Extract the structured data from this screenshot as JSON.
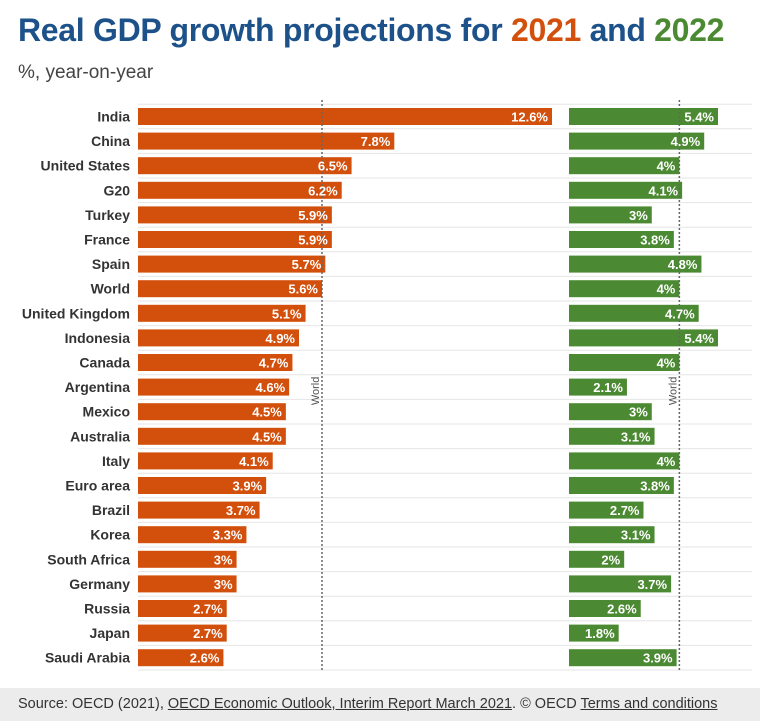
{
  "header": {
    "title_main": "Real GDP growth projections for",
    "title_year1": "2021",
    "title_and": "and",
    "title_year2": "2022",
    "subtitle": "%, year-on-year"
  },
  "colors": {
    "title": "#1d5189",
    "series_2021": "#d24f0c",
    "series_2022": "#4b8a32",
    "gridline": "#e6e6e6",
    "reference_line": "#666666"
  },
  "chart_data": {
    "type": "bar",
    "orientation": "horizontal",
    "title": "Real GDP growth projections for 2021 and 2022",
    "subtitle": "%, year-on-year",
    "unit": "%",
    "categories": [
      "India",
      "China",
      "United States",
      "G20",
      "Turkey",
      "France",
      "Spain",
      "World",
      "United Kingdom",
      "Indonesia",
      "Canada",
      "Argentina",
      "Mexico",
      "Australia",
      "Italy",
      "Euro area",
      "Brazil",
      "Korea",
      "South Africa",
      "Germany",
      "Russia",
      "Japan",
      "Saudi Arabia"
    ],
    "series": [
      {
        "name": "2021",
        "color": "#d24f0c",
        "values": [
          12.6,
          7.8,
          6.5,
          6.2,
          5.9,
          5.9,
          5.7,
          5.6,
          5.1,
          4.9,
          4.7,
          4.6,
          4.5,
          4.5,
          4.1,
          3.9,
          3.7,
          3.3,
          3,
          3,
          2.7,
          2.7,
          2.6
        ],
        "labels": [
          "12.6%",
          "7.8%",
          "6.5%",
          "6.2%",
          "5.9%",
          "5.9%",
          "5.7%",
          "5.6%",
          "5.1%",
          "4.9%",
          "4.7%",
          "4.6%",
          "4.5%",
          "4.5%",
          "4.1%",
          "3.9%",
          "3.7%",
          "3.3%",
          "3%",
          "3%",
          "2.7%",
          "2.7%",
          "2.6%"
        ],
        "xlim": [
          0,
          12.6
        ],
        "reference": {
          "label": "World",
          "value": 5.6
        }
      },
      {
        "name": "2022",
        "color": "#4b8a32",
        "values": [
          5.4,
          4.9,
          4,
          4.1,
          3,
          3.8,
          4.8,
          4,
          4.7,
          5.4,
          4,
          2.1,
          3,
          3.1,
          4,
          3.8,
          2.7,
          3.1,
          2,
          3.7,
          2.6,
          1.8,
          3.9
        ],
        "labels": [
          "5.4%",
          "4.9%",
          "4%",
          "4.1%",
          "3%",
          "3.8%",
          "4.8%",
          "4%",
          "4.7%",
          "5.4%",
          "4%",
          "2.1%",
          "3%",
          "3.1%",
          "4%",
          "3.8%",
          "2.7%",
          "3.1%",
          "2%",
          "3.7%",
          "2.6%",
          "1.8%",
          "3.9%"
        ],
        "xlim": [
          0,
          5.4
        ],
        "reference": {
          "label": "World",
          "value": 4
        }
      }
    ],
    "grid": true
  },
  "footer": {
    "source_prefix": "Source: OECD (2021),",
    "source_link": "OECD Economic Outlook, Interim Report March 2021",
    "copyright": ". © OECD",
    "terms_link": "Terms and conditions"
  }
}
